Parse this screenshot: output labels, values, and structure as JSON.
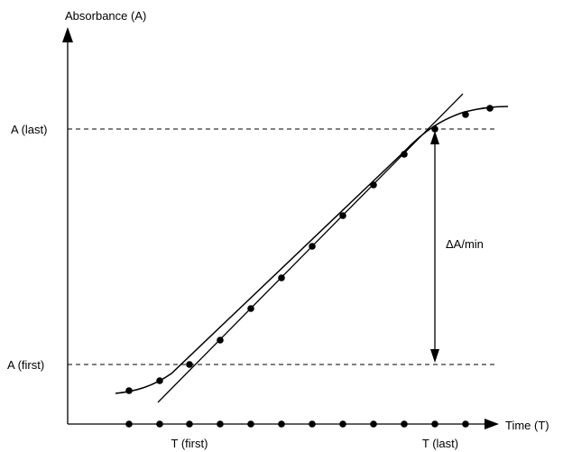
{
  "diagram": {
    "y_axis_label": "Absorbance (A)",
    "x_axis_label": "Time (T)",
    "a_last_label": "A (last)",
    "a_first_label": "A (first)",
    "t_first_label": "T (first)",
    "t_last_label": "T (last)",
    "delta_label": "ΔA/min"
  },
  "colors": {
    "ink": "#000000",
    "background": "#ffffff"
  }
}
